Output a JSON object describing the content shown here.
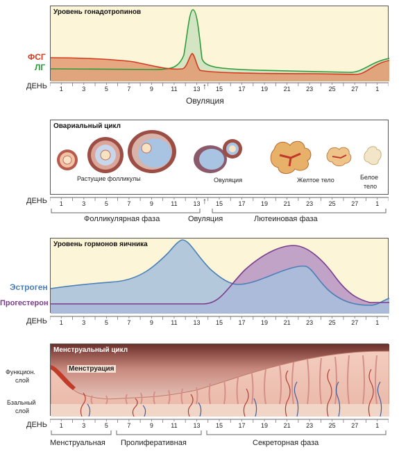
{
  "days": [
    "1",
    "3",
    "5",
    "7",
    "9",
    "11",
    "13",
    "15",
    "17",
    "19",
    "21",
    "23",
    "25",
    "27",
    "1"
  ],
  "day_label": "ДЕНЬ",
  "gonado": {
    "title": "Уровень гонадотропинов",
    "fsg_label": "ФСГ",
    "lg_label": "ЛГ",
    "ovulation_label": "Овуляция",
    "colors": {
      "fsg": "#d13a1e",
      "lg": "#2e9a3c"
    }
  },
  "ovarian": {
    "title": "Овариальный цикл",
    "growing_label": "Растущие фолликулы",
    "ovulation_label": "Овуляция",
    "yellow_label": "Желтое тело",
    "white_label_1": "Белое",
    "white_label_2": "тело",
    "phase_follicular": "Фолликулярная фаза",
    "phase_ovulation": "Овуляция",
    "phase_luteal": "Лютеиновая фаза"
  },
  "hormones": {
    "title": "Уровень гормонов яичника",
    "estrogen_label": "Эстроген",
    "progesterone_label": "Прогестерон",
    "colors": {
      "estrogen": "#4a7fb8",
      "progesterone": "#7b3b8e"
    }
  },
  "menstrual": {
    "title": "Менструальный цикл",
    "menstruation_label": "Менструация",
    "functional_label_1": "Функцион.",
    "functional_label_2": "слой",
    "basal_label_1": "Бзальный",
    "basal_label_2": "слой",
    "phase_menstrual": "Менструальная",
    "phase_proliferative": "Пролиферативная",
    "phase_secretory": "Секреторная фаза"
  }
}
